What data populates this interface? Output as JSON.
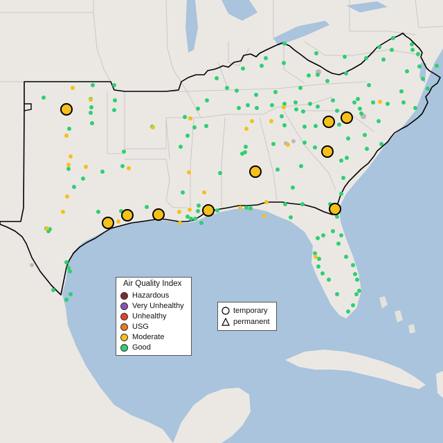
{
  "legend": {
    "title": "Air Quality Index",
    "categories": [
      {
        "label": "Hazardous",
        "color": "#7e2a2a"
      },
      {
        "label": "Very Unhealthy",
        "color": "#8f4fb8"
      },
      {
        "label": "Unhealthy",
        "color": "#e0442c"
      },
      {
        "label": "USG",
        "color": "#e87c1e"
      },
      {
        "label": "Moderate",
        "color": "#f5c01a"
      },
      {
        "label": "Good",
        "color": "#2ecf73"
      }
    ]
  },
  "monitor_types": {
    "temporary": "temporary",
    "permanent": "permanent"
  },
  "colors": {
    "water": "#a9c4dc",
    "land": "#ebe8e4",
    "state_border": "#c9c6c6",
    "region_outline": "#000000",
    "inactive_monitor": "#b9b9b9"
  }
}
